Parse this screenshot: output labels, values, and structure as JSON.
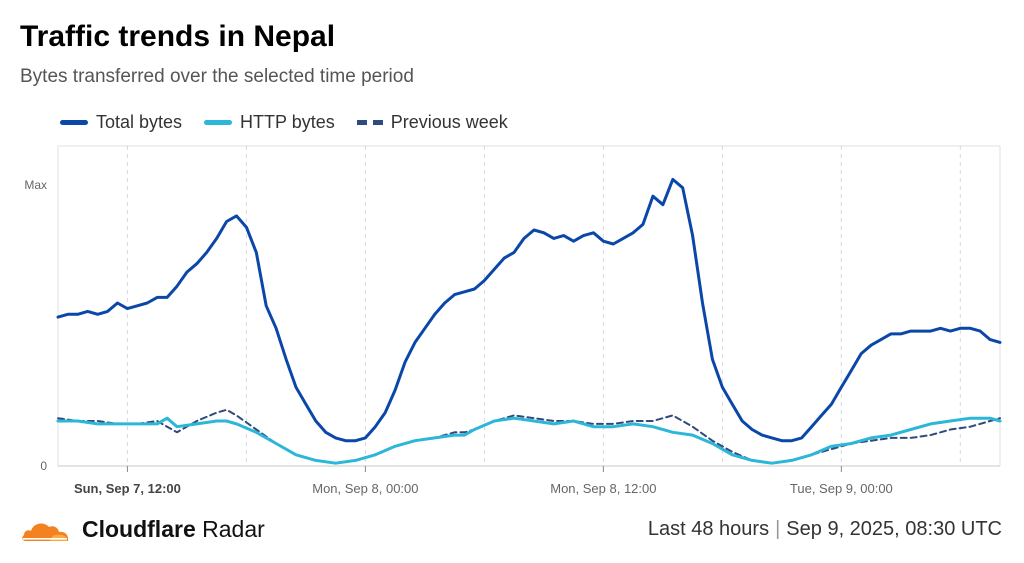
{
  "header": {
    "title": "Traffic trends in Nepal",
    "subtitle": "Bytes transferred over the selected time period"
  },
  "legend": {
    "items": [
      {
        "label": "Total bytes",
        "color": "#0a47a9"
      },
      {
        "label": "HTTP bytes",
        "color": "#2cb6d8"
      },
      {
        "label": "Previous week",
        "color": "#2f4b7c"
      }
    ]
  },
  "footer": {
    "brand_bold": "Cloudflare",
    "brand_rest": "Radar",
    "period": "Last 48 hours",
    "timestamp": "Sep 9, 2025, 08:30 UTC"
  },
  "chart_data": {
    "type": "line",
    "ytick_labels": {
      "max": "Max",
      "min": "0"
    },
    "ylim": [
      0,
      1
    ],
    "xlim": [
      0,
      47.5
    ],
    "xticks": [
      {
        "x": 3.5,
        "label": "Sun, Sep 7, 12:00",
        "bold": true
      },
      {
        "x": 15.5,
        "label": "Mon, Sep 8, 00:00",
        "bold": false
      },
      {
        "x": 27.5,
        "label": "Mon, Sep 8, 12:00",
        "bold": false
      },
      {
        "x": 39.5,
        "label": "Tue, Sep 9, 00:00",
        "bold": false
      }
    ],
    "grid_x": [
      3.5,
      9.5,
      15.5,
      21.5,
      27.5,
      33.5,
      39.5,
      45.5
    ],
    "series": [
      {
        "name": "Total bytes",
        "color": "#0a47a9",
        "style": "solid",
        "x": [
          0,
          0.5,
          1,
          1.5,
          2,
          2.5,
          3,
          3.5,
          4,
          4.5,
          5,
          5.5,
          6,
          6.5,
          7,
          7.5,
          8,
          8.5,
          9,
          9.5,
          10,
          10.5,
          11,
          11.5,
          12,
          12.5,
          13,
          13.5,
          14,
          14.5,
          15,
          15.5,
          16,
          16.5,
          17,
          17.5,
          18,
          18.5,
          19,
          19.5,
          20,
          20.5,
          21,
          21.5,
          22,
          22.5,
          23,
          23.5,
          24,
          24.5,
          25,
          25.5,
          26,
          26.5,
          27,
          27.5,
          28,
          28.5,
          29,
          29.5,
          30,
          30.5,
          31,
          31.5,
          32,
          32.5,
          33,
          33.5,
          34,
          34.5,
          35,
          35.5,
          36,
          36.5,
          37,
          37.5,
          38,
          38.5,
          39,
          39.5,
          40,
          40.5,
          41,
          41.5,
          42,
          42.5,
          43,
          43.5,
          44,
          44.5,
          45,
          45.5,
          46,
          46.5,
          47,
          47.5
        ],
        "y": [
          0.53,
          0.54,
          0.54,
          0.55,
          0.54,
          0.55,
          0.58,
          0.56,
          0.57,
          0.58,
          0.6,
          0.6,
          0.64,
          0.69,
          0.72,
          0.76,
          0.81,
          0.87,
          0.89,
          0.85,
          0.76,
          0.57,
          0.49,
          0.38,
          0.28,
          0.22,
          0.16,
          0.12,
          0.1,
          0.09,
          0.09,
          0.1,
          0.14,
          0.19,
          0.27,
          0.37,
          0.44,
          0.49,
          0.54,
          0.58,
          0.61,
          0.62,
          0.63,
          0.66,
          0.7,
          0.74,
          0.76,
          0.81,
          0.84,
          0.83,
          0.81,
          0.82,
          0.8,
          0.82,
          0.83,
          0.8,
          0.79,
          0.81,
          0.83,
          0.86,
          0.96,
          0.93,
          1.02,
          0.99,
          0.82,
          0.58,
          0.38,
          0.28,
          0.22,
          0.16,
          0.13,
          0.11,
          0.1,
          0.09,
          0.09,
          0.1,
          0.14,
          0.18,
          0.22,
          0.28,
          0.34,
          0.4,
          0.43,
          0.45,
          0.47,
          0.47,
          0.48,
          0.48,
          0.48,
          0.49,
          0.48,
          0.49,
          0.49,
          0.48,
          0.45,
          0.44
        ],
        "dense": true
      },
      {
        "name": "HTTP bytes",
        "color": "#2cb6d8",
        "style": "solid",
        "x": [
          0,
          1,
          2,
          3,
          4,
          5,
          5.5,
          6,
          7,
          8,
          8.5,
          9,
          10,
          11,
          12,
          13,
          14,
          15,
          16,
          17,
          18,
          19,
          20,
          20.5,
          21,
          22,
          23,
          24,
          25,
          26,
          27,
          28,
          29,
          30,
          31,
          32,
          33,
          34,
          35,
          36,
          37,
          38,
          39,
          40,
          41,
          42,
          43,
          44,
          45,
          46,
          47,
          47.5
        ],
        "y": [
          0.16,
          0.16,
          0.15,
          0.15,
          0.15,
          0.15,
          0.17,
          0.14,
          0.15,
          0.16,
          0.16,
          0.15,
          0.12,
          0.08,
          0.04,
          0.02,
          0.01,
          0.02,
          0.04,
          0.07,
          0.09,
          0.1,
          0.11,
          0.11,
          0.13,
          0.16,
          0.17,
          0.16,
          0.15,
          0.16,
          0.14,
          0.14,
          0.15,
          0.14,
          0.12,
          0.11,
          0.08,
          0.04,
          0.02,
          0.01,
          0.02,
          0.04,
          0.07,
          0.08,
          0.1,
          0.11,
          0.13,
          0.15,
          0.16,
          0.17,
          0.17,
          0.16
        ],
        "dense": false
      },
      {
        "name": "Previous week",
        "color": "#2f4b7c",
        "style": "dashed",
        "x": [
          0,
          1,
          2,
          3,
          4,
          5,
          5.5,
          6,
          7,
          8,
          8.5,
          9,
          10,
          11,
          12,
          13,
          14,
          15,
          16,
          17,
          18,
          19,
          20,
          20.5,
          21,
          22,
          23,
          24,
          25,
          26,
          27,
          28,
          29,
          30,
          31,
          32,
          33,
          34,
          35,
          36,
          37,
          38,
          39,
          40,
          41,
          42,
          43,
          44,
          45,
          46,
          47,
          47.5
        ],
        "y": [
          0.17,
          0.16,
          0.16,
          0.15,
          0.15,
          0.16,
          0.14,
          0.12,
          0.16,
          0.19,
          0.2,
          0.18,
          0.13,
          0.08,
          0.04,
          0.02,
          0.01,
          0.02,
          0.04,
          0.07,
          0.09,
          0.1,
          0.12,
          0.12,
          0.13,
          0.16,
          0.18,
          0.17,
          0.16,
          0.16,
          0.15,
          0.15,
          0.16,
          0.16,
          0.18,
          0.14,
          0.09,
          0.05,
          0.02,
          0.01,
          0.02,
          0.04,
          0.06,
          0.08,
          0.09,
          0.1,
          0.1,
          0.11,
          0.13,
          0.14,
          0.16,
          0.17
        ],
        "dense": false
      }
    ]
  }
}
